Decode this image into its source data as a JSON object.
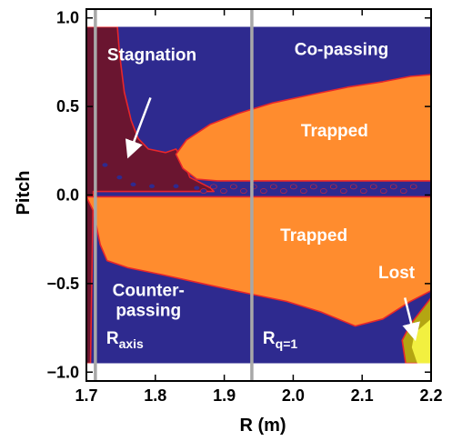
{
  "chart_data": {
    "type": "heatmap",
    "title": "",
    "xlabel": "R (m)",
    "ylabel": "Pitch",
    "xlim": [
      1.7,
      2.2
    ],
    "ylim": [
      -1.05,
      1.05
    ],
    "plot_range": {
      "xmin": 1.7,
      "xmax": 2.2,
      "ymin": -0.95,
      "ymax": 0.95
    },
    "x_ticks": [
      "1.7",
      "1.8",
      "1.9",
      "2.0",
      "2.1",
      "2.2"
    ],
    "x_tick_values": [
      1.7,
      1.8,
      1.9,
      2.0,
      2.1,
      2.2
    ],
    "y_ticks": [
      "1.0",
      "0.5",
      "0.0",
      "−0.5",
      "−1.0"
    ],
    "y_tick_values": [
      1.0,
      0.5,
      0.0,
      -0.5,
      -1.0
    ],
    "vertical_lines": [
      {
        "x": 1.713,
        "label_main": "R",
        "label_sub": "axis"
      },
      {
        "x": 1.94,
        "label_main": "R",
        "label_sub": "q=1"
      }
    ],
    "colors": {
      "passing": "#2E2A8F",
      "trapped": "#FF8C2E",
      "stagnation": "#6A1530",
      "lost": "#B4A612",
      "lost_core": "#F2F040",
      "boundary": "#E8262B",
      "vline": "#A8A8A8"
    },
    "regions": [
      {
        "name": "Co-passing",
        "color_key": "passing",
        "label_lines": [
          "Co-passing"
        ],
        "label_at": [
          2.07,
          0.79
        ],
        "polygon": [
          [
            1.7,
            0.95
          ],
          [
            2.2,
            0.95
          ],
          [
            2.2,
            -0.95
          ],
          [
            1.7,
            -0.95
          ]
        ]
      },
      {
        "name": "Counter-passing",
        "color_key": "passing",
        "label_lines": [
          "Counter-",
          "passing"
        ],
        "label_at": [
          1.79,
          -0.57
        ],
        "polygon": []
      },
      {
        "name": "Stagnation",
        "color_key": "stagnation",
        "label_lines": [
          "Stagnation"
        ],
        "label_at": [
          1.795,
          0.76
        ],
        "polygon": [
          [
            1.7,
            0.95
          ],
          [
            1.745,
            0.95
          ],
          [
            1.748,
            0.8
          ],
          [
            1.755,
            0.58
          ],
          [
            1.765,
            0.42
          ],
          [
            1.775,
            0.32
          ],
          [
            1.79,
            0.26
          ],
          [
            1.815,
            0.24
          ],
          [
            1.83,
            0.26
          ],
          [
            1.84,
            0.2
          ],
          [
            1.85,
            0.1
          ],
          [
            1.88,
            0.04
          ],
          [
            1.885,
            0.02
          ],
          [
            1.71,
            0.02
          ],
          [
            1.706,
            -0.95
          ],
          [
            1.7,
            -0.95
          ]
        ]
      },
      {
        "name": "Trapped",
        "color_key": "trapped",
        "label_lines": [
          "Trapped"
        ],
        "label_at": [
          2.06,
          0.33
        ],
        "polygon": [
          [
            1.83,
            0.23
          ],
          [
            1.845,
            0.31
          ],
          [
            1.88,
            0.4
          ],
          [
            1.92,
            0.46
          ],
          [
            1.97,
            0.52
          ],
          [
            2.03,
            0.57
          ],
          [
            2.08,
            0.61
          ],
          [
            2.13,
            0.64
          ],
          [
            2.17,
            0.67
          ],
          [
            2.2,
            0.68
          ],
          [
            2.2,
            0.08
          ],
          [
            1.89,
            0.08
          ],
          [
            1.86,
            0.09
          ],
          [
            1.84,
            0.15
          ]
        ]
      },
      {
        "name": "Trapped",
        "color_key": "trapped",
        "label_lines": [
          "Trapped"
        ],
        "label_at": [
          2.03,
          -0.26
        ],
        "polygon": [
          [
            1.7,
            -0.01
          ],
          [
            2.2,
            -0.01
          ],
          [
            2.2,
            -0.54
          ],
          [
            2.17,
            -0.6
          ],
          [
            2.13,
            -0.7
          ],
          [
            2.09,
            -0.74
          ],
          [
            2.04,
            -0.66
          ],
          [
            1.99,
            -0.6
          ],
          [
            1.94,
            -0.56
          ],
          [
            1.88,
            -0.51
          ],
          [
            1.81,
            -0.45
          ],
          [
            1.76,
            -0.41
          ],
          [
            1.73,
            -0.37
          ],
          [
            1.72,
            -0.28
          ],
          [
            1.71,
            -0.09
          ]
        ]
      },
      {
        "name": "Lost",
        "color_key": "lost",
        "label_lines": [
          "Lost"
        ],
        "label_at": [
          2.15,
          -0.47
        ],
        "polygon": [
          [
            2.17,
            -0.73
          ],
          [
            2.2,
            -0.58
          ],
          [
            2.2,
            -0.95
          ],
          [
            2.163,
            -0.95
          ],
          [
            2.158,
            -0.82
          ]
        ]
      }
    ],
    "annotations": [
      {
        "label": "Stagnation",
        "from": [
          1.793,
          0.55
        ],
        "to": [
          1.762,
          0.23
        ]
      },
      {
        "label": "Lost",
        "from": [
          2.162,
          -0.58
        ],
        "to": [
          2.176,
          -0.8
        ]
      }
    ]
  }
}
